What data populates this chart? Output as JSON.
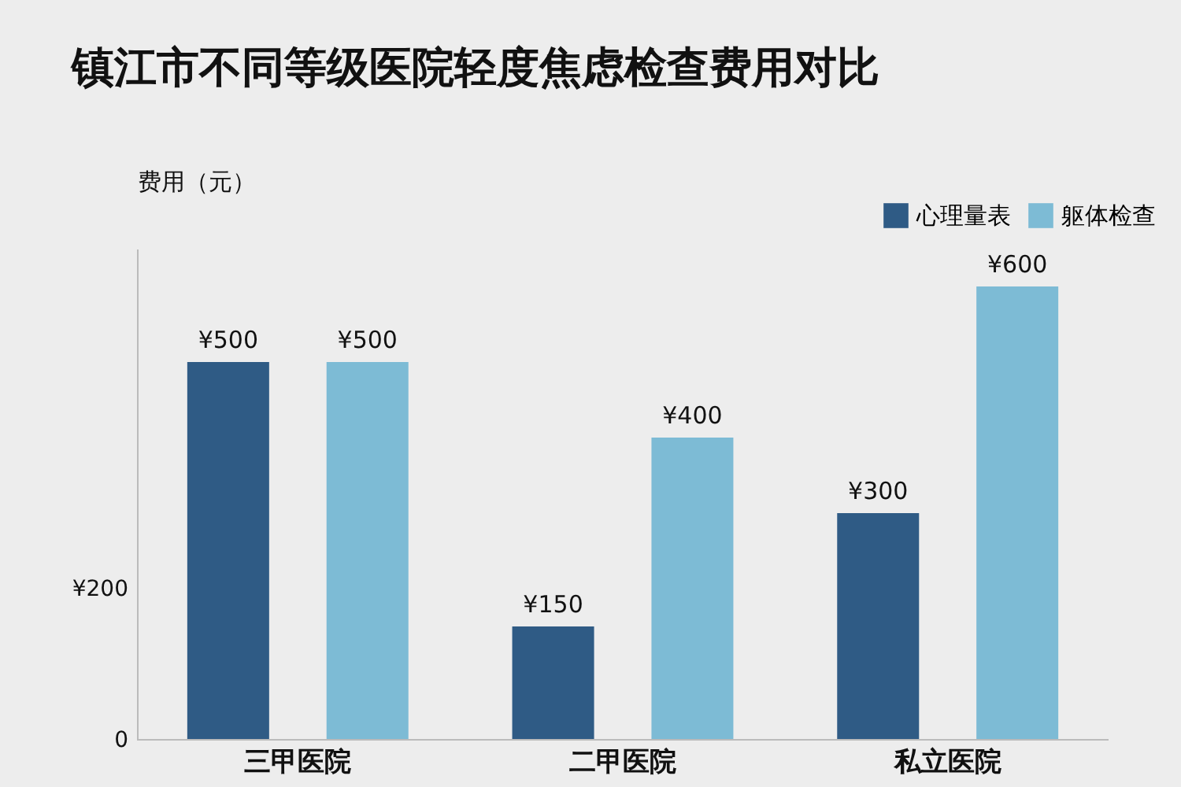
{
  "chart_data": {
    "type": "bar",
    "title": "镇江市不同等级医院轻度焦虑检查费用对比",
    "ylabel": "费用（元）",
    "categories": [
      "三甲医院",
      "二甲医院",
      "私立医院"
    ],
    "series": [
      {
        "name": "心理量表",
        "color": "#2f5b85",
        "values": [
          500,
          150,
          300
        ],
        "value_labels": [
          "¥500",
          "¥150",
          "¥300"
        ]
      },
      {
        "name": "躯体检查",
        "color": "#7dbbd5",
        "values": [
          500,
          400,
          600
        ],
        "value_labels": [
          "¥500",
          "¥400",
          "¥600"
        ]
      }
    ],
    "ylim": [
      0,
      650
    ],
    "yticks": [
      0,
      {
        "value": 200,
        "label": "¥200"
      }
    ],
    "grid": false,
    "legend": "top right"
  }
}
